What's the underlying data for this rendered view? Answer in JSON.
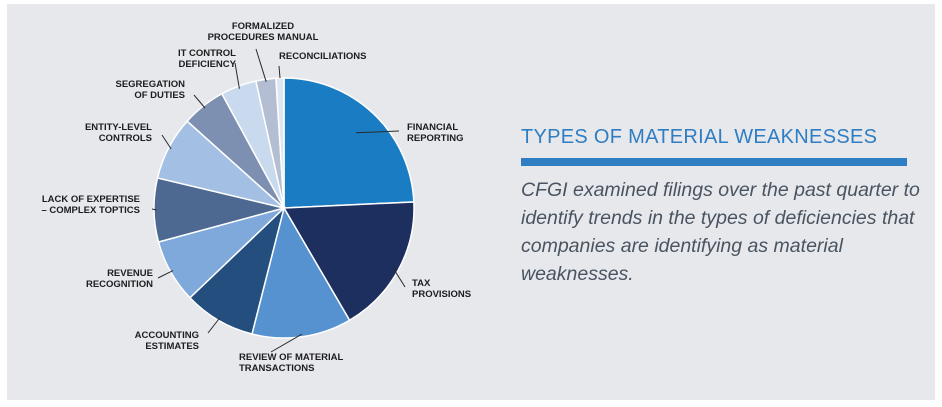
{
  "info": {
    "heading": "TYPES OF MATERIAL WEAKNESSES",
    "description": "CFGI examined filings over the past quarter to identify trends in the types of deficiencies that companies are identifying as material weaknesses."
  },
  "chart_data": {
    "type": "pie",
    "categories": [
      "FINANCIAL REPORTING",
      "TAX PROVISIONS",
      "REVIEW OF MATERIAL TRANSACTIONS",
      "ACCOUNTING ESTIMATES",
      "REVENUE RECOGNITION",
      "LACK OF EXPERTISE – COMPLEX TOPTICS",
      "ENTITY-LEVEL CONTROLS",
      "SEGREGATION OF DUTIES",
      "IT CONTROL DEFICIENCY",
      "FORMALIZED PROCEDURES MANUAL",
      "RECONCILIATIONS"
    ],
    "labels": [
      [
        "FINANCIAL",
        "REPORTING"
      ],
      [
        "TAX",
        "PROVISIONS"
      ],
      [
        "REVIEW OF MATERIAL",
        "TRANSACTIONS"
      ],
      [
        "ACCOUNTING",
        "ESTIMATES"
      ],
      [
        "REVENUE",
        "RECOGNITION"
      ],
      [
        "LACK OF EXPERTISE",
        "– COMPLEX TOPTICS"
      ],
      [
        "ENTITY-LEVEL",
        "CONTROLS"
      ],
      [
        "SEGREGATION",
        "OF DUTIES"
      ],
      [
        "IT CONTROL",
        "DEFICIENCY"
      ],
      [
        "FORMALIZED",
        "PROCEDURES MANUAL"
      ],
      [
        "RECONCILIATIONS"
      ]
    ],
    "values": [
      24.5,
      17.5,
      12.5,
      9,
      8,
      8,
      8,
      5.5,
      4.5,
      2.5,
      1
    ],
    "colors": [
      "#1a7dc4",
      "#1c2f5e",
      "#5592cf",
      "#234e7e",
      "#7fa9db",
      "#4d6991",
      "#a3c0e4",
      "#7e90b1",
      "#c9d9ee",
      "#b3bed3",
      "#dde6f3"
    ]
  }
}
